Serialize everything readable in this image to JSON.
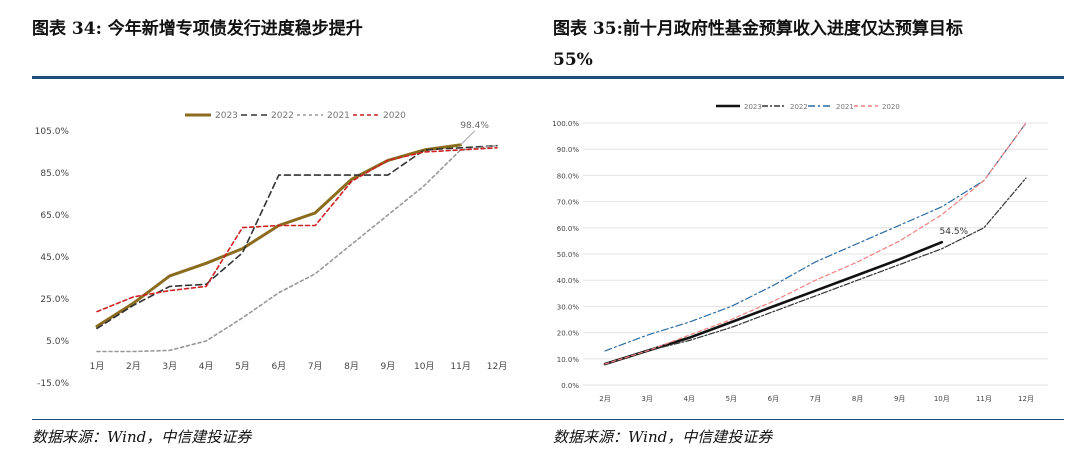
{
  "left_title": "图表 34: 今年新增专项债发行进度稳步提升",
  "right_title_line1": "图表 35:前十月政府性基金预算收入进度仅达预算目标",
  "right_title_line2": "55%",
  "left_source": "数据来源：Wind，中信建投证券",
  "right_source": "数据来源：Wind，中信建投证券",
  "colors": {
    "rule": "#1f4e79"
  },
  "chart_data": [
    {
      "type": "line",
      "title": "",
      "categories": [
        "1月",
        "2月",
        "3月",
        "4月",
        "5月",
        "6月",
        "7月",
        "8月",
        "9月",
        "10月",
        "11月",
        "12月"
      ],
      "y_ticks": [
        "105.0%",
        "85.0%",
        "65.0%",
        "45.0%",
        "25.0%",
        "5.0%",
        "-15.0%"
      ],
      "ylim": [
        -15,
        105
      ],
      "annotation": "98.4%",
      "series": [
        {
          "name": "2023",
          "color": "#8b6c1e",
          "dash": "solid",
          "width": 3,
          "values": [
            12,
            23,
            36,
            42,
            49,
            60,
            66,
            82,
            91,
            96,
            98.4,
            null
          ]
        },
        {
          "name": "2022",
          "color": "#333333",
          "dash": "6,4",
          "width": 1.6,
          "values": [
            11,
            22,
            31,
            32,
            47,
            84,
            84,
            84,
            84,
            96,
            97,
            98
          ]
        },
        {
          "name": "2021",
          "color": "#999999",
          "dash": "3,3",
          "width": 1.6,
          "values": [
            0,
            0,
            0.5,
            5,
            16,
            28,
            37,
            51,
            65,
            79,
            96,
            98
          ]
        },
        {
          "name": "2020",
          "color": "#cc2222",
          "dash": "4,3",
          "width": 1.6,
          "values": [
            19,
            26,
            29,
            31,
            59,
            60,
            60,
            81,
            91,
            95,
            96,
            97
          ]
        }
      ]
    },
    {
      "type": "line",
      "title": "",
      "categories": [
        "2月",
        "3月",
        "4月",
        "5月",
        "6月",
        "7月",
        "8月",
        "9月",
        "10月",
        "11月",
        "12月"
      ],
      "y_ticks": [
        "100.0%",
        "90.0%",
        "80.0%",
        "70.0%",
        "60.0%",
        "50.0%",
        "40.0%",
        "30.0%",
        "20.0%",
        "10.0%",
        "0.0%"
      ],
      "ylim": [
        0,
        100
      ],
      "annotation": "54.5%",
      "series": [
        {
          "name": "2023",
          "color": "#111111",
          "dash": "solid",
          "width": 2.6,
          "values": [
            8,
            13,
            18,
            24,
            30,
            36,
            42,
            48,
            54.5,
            null,
            null
          ]
        },
        {
          "name": "2022",
          "color": "#333333",
          "dash": "6,2,2,2",
          "width": 1.2,
          "values": [
            8,
            13,
            17,
            22,
            28,
            34,
            40,
            46,
            52,
            60,
            79
          ]
        },
        {
          "name": "2021",
          "color": "#2b6ca3",
          "dash": "7,3,2,3",
          "width": 1.2,
          "values": [
            13,
            19,
            24,
            30,
            38,
            47,
            54,
            61,
            68,
            78,
            100
          ]
        },
        {
          "name": "2020",
          "color": "#f08080",
          "dash": "4,3",
          "width": 1.2,
          "values": [
            8,
            13,
            19,
            25,
            32,
            40,
            47,
            55,
            65,
            78,
            100
          ]
        }
      ]
    }
  ]
}
